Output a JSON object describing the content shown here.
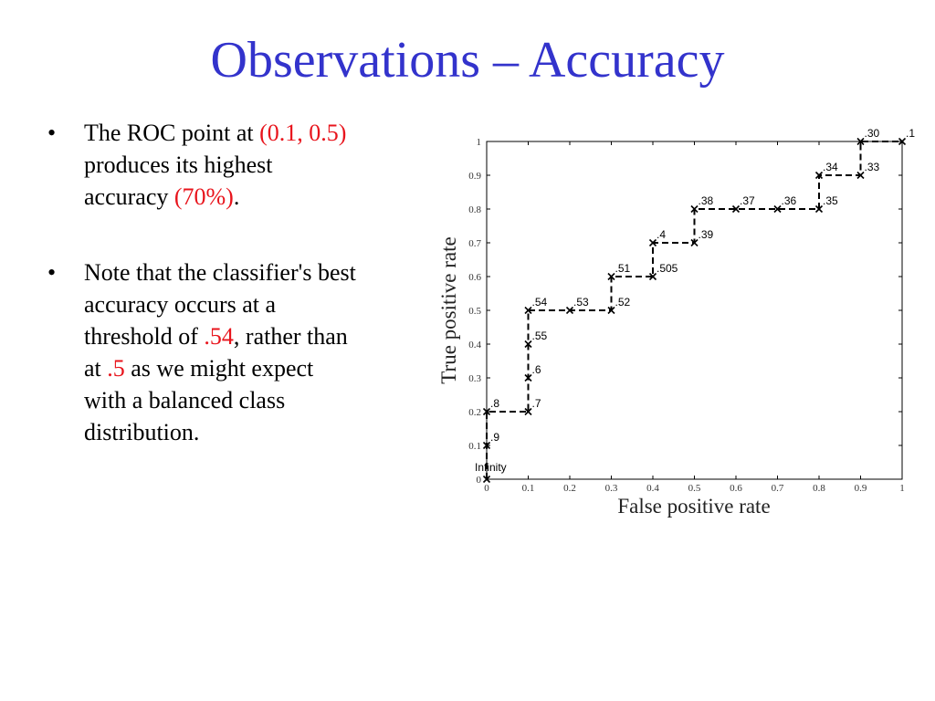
{
  "slide": {
    "title": "Observations – Accuracy",
    "colors": {
      "title": "#3333cc",
      "highlight": "#e8141c"
    },
    "bullets": [
      {
        "parts": [
          {
            "text": "The ROC point at ",
            "highlight": false
          },
          {
            "text": "(0.1, 0.5)",
            "highlight": true
          },
          {
            "text": " produces its highest accuracy ",
            "highlight": false
          },
          {
            "text": "(70%)",
            "highlight": true
          },
          {
            "text": ".",
            "highlight": false
          }
        ]
      },
      {
        "parts": [
          {
            "text": "Note that the classifier's best accuracy occurs at a threshold of  ",
            "highlight": false
          },
          {
            "text": ".54",
            "highlight": true
          },
          {
            "text": ", rather than at  ",
            "highlight": false
          },
          {
            "text": ".5",
            "highlight": true
          },
          {
            "text": " as we might expect with a balanced class distribution.",
            "highlight": false
          }
        ]
      }
    ]
  },
  "chart_data": {
    "type": "line",
    "xlabel": "False positive rate",
    "ylabel": "True positive rate",
    "xlim": [
      0,
      1
    ],
    "ylim": [
      0,
      1
    ],
    "x_ticks": [
      "0",
      "0.1",
      "0.2",
      "0.3",
      "0.4",
      "0.5",
      "0.6",
      "0.7",
      "0.8",
      "0.9",
      "1"
    ],
    "y_ticks": [
      "0",
      "0.1",
      "0.2",
      "0.3",
      "0.4",
      "0.5",
      "0.6",
      "0.7",
      "0.8",
      "0.9",
      "1"
    ],
    "line_style": "dashed",
    "marker": "x",
    "points": [
      {
        "x": 0.0,
        "y": 0.0,
        "label": "Infinity"
      },
      {
        "x": 0.0,
        "y": 0.1,
        "label": ".9"
      },
      {
        "x": 0.0,
        "y": 0.2,
        "label": ".8"
      },
      {
        "x": 0.1,
        "y": 0.2,
        "label": ".7"
      },
      {
        "x": 0.1,
        "y": 0.3,
        "label": ".6"
      },
      {
        "x": 0.1,
        "y": 0.4,
        "label": ".55"
      },
      {
        "x": 0.1,
        "y": 0.5,
        "label": ".54"
      },
      {
        "x": 0.2,
        "y": 0.5,
        "label": ".53"
      },
      {
        "x": 0.3,
        "y": 0.5,
        "label": ".52"
      },
      {
        "x": 0.3,
        "y": 0.6,
        "label": ".51"
      },
      {
        "x": 0.4,
        "y": 0.6,
        "label": ".505"
      },
      {
        "x": 0.4,
        "y": 0.7,
        "label": ".4"
      },
      {
        "x": 0.5,
        "y": 0.7,
        "label": ".39"
      },
      {
        "x": 0.5,
        "y": 0.8,
        "label": ".38"
      },
      {
        "x": 0.6,
        "y": 0.8,
        "label": ".37"
      },
      {
        "x": 0.7,
        "y": 0.8,
        "label": ".36"
      },
      {
        "x": 0.8,
        "y": 0.8,
        "label": ".35"
      },
      {
        "x": 0.8,
        "y": 0.9,
        "label": ".34"
      },
      {
        "x": 0.9,
        "y": 0.9,
        "label": ".33"
      },
      {
        "x": 0.9,
        "y": 1.0,
        "label": ".30"
      },
      {
        "x": 1.0,
        "y": 1.0,
        "label": ".1"
      }
    ]
  }
}
